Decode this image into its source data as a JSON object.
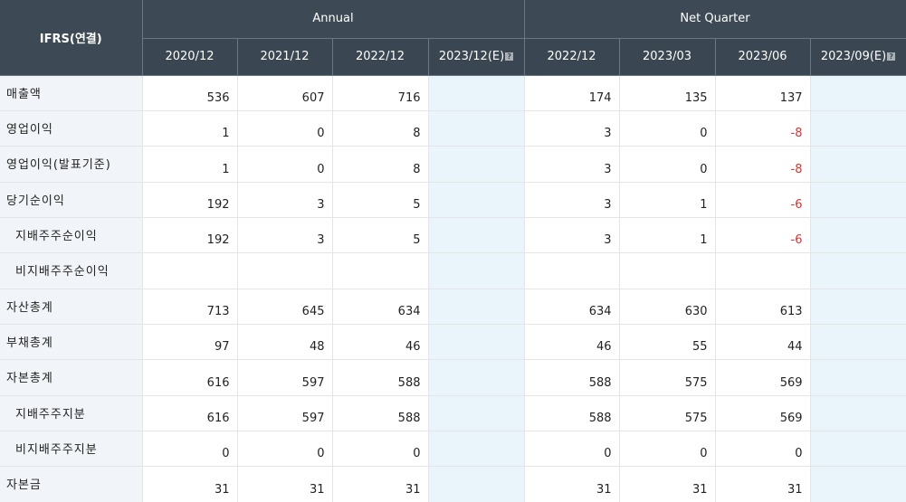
{
  "header": {
    "ifrs": "IFRS(연결)",
    "annual": "Annual",
    "quarter": "Net Quarter",
    "periods": [
      "2020/12",
      "2021/12",
      "2022/12",
      "2023/12(E)",
      "2022/12",
      "2023/03",
      "2023/06",
      "2023/09(E)"
    ],
    "help_glyph": "?"
  },
  "rows": [
    {
      "label": "매출액",
      "indent": false,
      "values": [
        "536",
        "607",
        "716",
        "",
        "174",
        "135",
        "137",
        ""
      ]
    },
    {
      "label": "영업이익",
      "indent": false,
      "values": [
        "1",
        "0",
        "8",
        "",
        "3",
        "0",
        "-8",
        ""
      ]
    },
    {
      "label": "영업이익(발표기준)",
      "indent": false,
      "values": [
        "1",
        "0",
        "8",
        "",
        "3",
        "0",
        "-8",
        ""
      ]
    },
    {
      "label": "당기순이익",
      "indent": false,
      "values": [
        "192",
        "3",
        "5",
        "",
        "3",
        "1",
        "-6",
        ""
      ]
    },
    {
      "label": "지배주주순이익",
      "indent": true,
      "values": [
        "192",
        "3",
        "5",
        "",
        "3",
        "1",
        "-6",
        ""
      ]
    },
    {
      "label": "비지배주주순이익",
      "indent": true,
      "values": [
        "",
        "",
        "",
        "",
        "",
        "",
        "",
        ""
      ]
    },
    {
      "label": "자산총계",
      "indent": false,
      "values": [
        "713",
        "645",
        "634",
        "",
        "634",
        "630",
        "613",
        ""
      ]
    },
    {
      "label": "부채총계",
      "indent": false,
      "values": [
        "97",
        "48",
        "46",
        "",
        "46",
        "55",
        "44",
        ""
      ]
    },
    {
      "label": "자본총계",
      "indent": false,
      "values": [
        "616",
        "597",
        "588",
        "",
        "588",
        "575",
        "569",
        ""
      ]
    },
    {
      "label": "지배주주지분",
      "indent": true,
      "values": [
        "616",
        "597",
        "588",
        "",
        "588",
        "575",
        "569",
        ""
      ]
    },
    {
      "label": "비지배주주지분",
      "indent": true,
      "values": [
        "0",
        "0",
        "0",
        "",
        "0",
        "0",
        "0",
        ""
      ]
    },
    {
      "label": "자본금",
      "indent": false,
      "values": [
        "31",
        "31",
        "31",
        "",
        "31",
        "31",
        "31",
        ""
      ]
    }
  ],
  "colors": {
    "header_bg": "#3d4a55",
    "label_bg": "#f1f4f8",
    "estimate_bg": "#eaf4fb",
    "negative": "#e0312f"
  }
}
